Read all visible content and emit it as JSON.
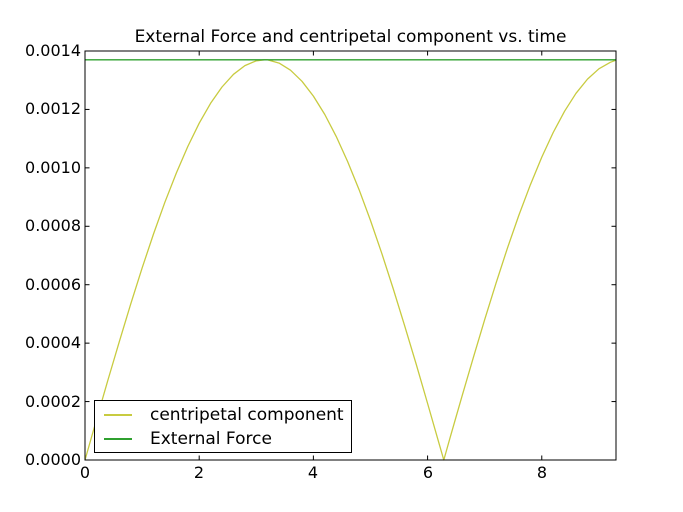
{
  "figure_background": "#ffffff",
  "axis_color": "#000000",
  "chart_data": {
    "type": "line",
    "title": "External Force and centripetal component vs. time",
    "xlabel": "",
    "ylabel": "",
    "xlim": [
      0,
      9.3
    ],
    "ylim": [
      0,
      0.0014
    ],
    "xticks": [
      0,
      2,
      4,
      6,
      8
    ],
    "xtick_labels": [
      "0",
      "2",
      "4",
      "6",
      "8"
    ],
    "yticks": [
      0,
      0.0002,
      0.0004,
      0.0006,
      0.0008,
      0.001,
      0.0012,
      0.0014
    ],
    "ytick_labels": [
      "0.0000",
      "0.0002",
      "0.0004",
      "0.0006",
      "0.0008",
      "0.0010",
      "0.0012",
      "0.0014"
    ],
    "grid": false,
    "legend": {
      "position": "lower-left",
      "entries": [
        "centripetal component",
        "External Force"
      ]
    },
    "series": [
      {
        "name": "centripetal component",
        "color": "#c8cb40",
        "x": [
          0,
          0.2,
          0.4,
          0.6,
          0.8,
          1.0,
          1.2,
          1.4,
          1.6,
          1.8,
          2.0,
          2.2,
          2.4,
          2.6,
          2.8,
          3.0,
          3.1416,
          3.2,
          3.4,
          3.6,
          3.8,
          4.0,
          4.2,
          4.4,
          4.6,
          4.8,
          5.0,
          5.2,
          5.4,
          5.6,
          5.8,
          6.0,
          6.2,
          6.2832,
          6.4,
          6.6,
          6.8,
          7.0,
          7.2,
          7.4,
          7.6,
          7.8,
          8.0,
          8.2,
          8.4,
          8.6,
          8.8,
          9.0,
          9.2,
          9.3
        ],
        "y": [
          0,
          0.0001368,
          0.0002722,
          0.0004049,
          0.0005335,
          0.0006568,
          0.0007736,
          0.0008826,
          0.0009828,
          0.0010732,
          0.0011528,
          0.001221,
          0.0012769,
          0.0013201,
          0.0013501,
          0.0013666,
          0.00137,
          0.0013694,
          0.0013586,
          0.0013342,
          0.0012964,
          0.0012457,
          0.0011826,
          0.0011076,
          0.0010216,
          0.0009254,
          0.0008199,
          0.0007062,
          0.0005855,
          0.0004589,
          0.0003278,
          0.0001933,
          5.7e-05,
          0,
          8e-05,
          0.0002161,
          0.0003501,
          0.0004806,
          0.0006063,
          0.0007259,
          0.0008382,
          0.0009422,
          0.0010368,
          0.001121,
          0.0011941,
          0.0012552,
          0.0013037,
          0.0013392,
          0.0013614,
          0.0013686
        ],
        "style": "solid"
      },
      {
        "name": "External Force",
        "color": "#2fa02f",
        "x": [
          0,
          9.3
        ],
        "y": [
          0.00137,
          0.00137
        ],
        "style": "solid"
      }
    ]
  }
}
